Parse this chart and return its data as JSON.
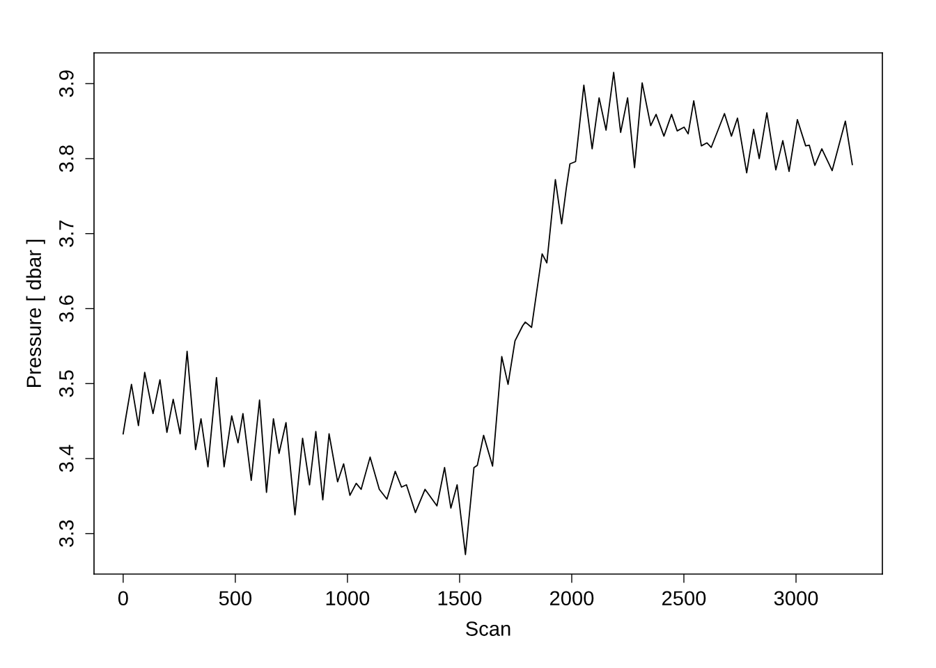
{
  "chart_data": {
    "type": "line",
    "xlabel": "Scan",
    "ylabel": "Pressure [ dbar ]",
    "xlim": [
      -130,
      3385
    ],
    "ylim": [
      3.246,
      3.941
    ],
    "xticks": [
      0,
      500,
      1000,
      1500,
      2000,
      2500,
      3000
    ],
    "yticks": [
      3.3,
      3.4,
      3.5,
      3.6,
      3.7,
      3.8,
      3.9
    ],
    "series": [
      {
        "color": "#000000",
        "x": [
          0,
          12,
          37,
          68,
          96,
          133,
          164,
          195,
          223,
          254,
          285,
          323,
          347,
          378,
          416,
          450,
          484,
          512,
          534,
          571,
          608,
          639,
          670,
          695,
          726,
          766,
          800,
          831,
          859,
          890,
          918,
          956,
          983,
          1011,
          1039,
          1061,
          1101,
          1142,
          1176,
          1213,
          1241,
          1263,
          1303,
          1346,
          1399,
          1433,
          1461,
          1489,
          1526,
          1564,
          1579,
          1607,
          1647,
          1688,
          1716,
          1747,
          1781,
          1793,
          1821,
          1868,
          1889,
          1927,
          1955,
          1976,
          1992,
          2017,
          2054,
          2091,
          2122,
          2153,
          2187,
          2218,
          2249,
          2280,
          2314,
          2352,
          2376,
          2411,
          2445,
          2470,
          2501,
          2519,
          2544,
          2578,
          2603,
          2622,
          2681,
          2712,
          2739,
          2780,
          2811,
          2836,
          2870,
          2910,
          2941,
          2969,
          3006,
          3043,
          3059,
          3084,
          3115,
          3161,
          3220,
          3251
        ],
        "values": [
          3.433,
          3.455,
          3.499,
          3.444,
          3.515,
          3.46,
          3.505,
          3.435,
          3.479,
          3.433,
          3.543,
          3.412,
          3.453,
          3.389,
          3.508,
          3.389,
          3.457,
          3.421,
          3.46,
          3.371,
          3.478,
          3.355,
          3.453,
          3.407,
          3.448,
          3.325,
          3.427,
          3.365,
          3.436,
          3.345,
          3.433,
          3.369,
          3.393,
          3.351,
          3.367,
          3.359,
          3.402,
          3.359,
          3.346,
          3.383,
          3.362,
          3.365,
          3.328,
          3.359,
          3.337,
          3.388,
          3.334,
          3.365,
          3.272,
          3.388,
          3.391,
          3.431,
          3.39,
          3.536,
          3.499,
          3.557,
          3.577,
          3.582,
          3.575,
          3.673,
          3.661,
          3.772,
          3.713,
          3.761,
          3.793,
          3.796,
          3.898,
          3.813,
          3.881,
          3.838,
          3.915,
          3.835,
          3.881,
          3.788,
          3.901,
          3.844,
          3.859,
          3.83,
          3.859,
          3.837,
          3.842,
          3.833,
          3.877,
          3.817,
          3.821,
          3.815,
          3.86,
          3.83,
          3.854,
          3.781,
          3.839,
          3.8,
          3.861,
          3.785,
          3.824,
          3.783,
          3.852,
          3.817,
          3.818,
          3.791,
          3.813,
          3.784,
          3.85,
          3.792
        ]
      }
    ]
  }
}
